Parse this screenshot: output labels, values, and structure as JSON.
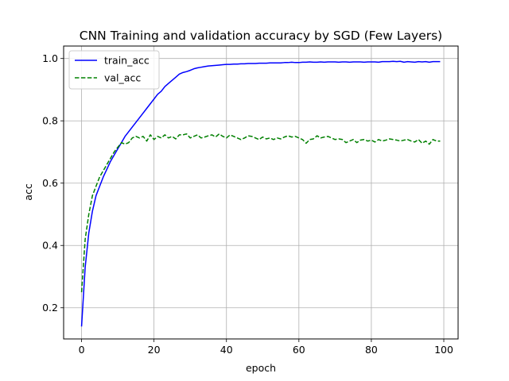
{
  "chart_data": {
    "type": "line",
    "title": "CNN Training and validation accuracy by SGD (Few Layers)",
    "xlabel": "epoch",
    "ylabel": "acc",
    "xlim": [
      -4.95,
      103.95
    ],
    "ylim": [
      0.1,
      1.04
    ],
    "xticks": [
      0,
      20,
      40,
      60,
      80,
      100
    ],
    "yticks": [
      0.2,
      0.4,
      0.6,
      0.8,
      1.0
    ],
    "grid": true,
    "legend_position": "upper-left",
    "series": [
      {
        "name": "train_acc",
        "color": "#0000ff",
        "dash": "solid",
        "x": [
          0,
          1,
          2,
          3,
          4,
          5,
          6,
          7,
          8,
          9,
          10,
          11,
          12,
          13,
          14,
          15,
          16,
          17,
          18,
          19,
          20,
          21,
          22,
          23,
          24,
          25,
          26,
          27,
          28,
          29,
          30,
          31,
          32,
          33,
          34,
          35,
          36,
          37,
          38,
          39,
          40,
          41,
          42,
          43,
          44,
          45,
          46,
          47,
          48,
          49,
          50,
          51,
          52,
          53,
          54,
          55,
          56,
          57,
          58,
          59,
          60,
          61,
          62,
          63,
          64,
          65,
          66,
          67,
          68,
          69,
          70,
          71,
          72,
          73,
          74,
          75,
          76,
          77,
          78,
          79,
          80,
          81,
          82,
          83,
          84,
          85,
          86,
          87,
          88,
          89,
          90,
          91,
          92,
          93,
          94,
          95,
          96,
          97,
          98,
          99
        ],
        "values": [
          0.14,
          0.33,
          0.44,
          0.51,
          0.56,
          0.59,
          0.62,
          0.645,
          0.67,
          0.69,
          0.71,
          0.73,
          0.75,
          0.765,
          0.78,
          0.795,
          0.81,
          0.825,
          0.84,
          0.855,
          0.87,
          0.885,
          0.895,
          0.91,
          0.92,
          0.93,
          0.94,
          0.95,
          0.955,
          0.958,
          0.962,
          0.967,
          0.97,
          0.972,
          0.974,
          0.976,
          0.977,
          0.978,
          0.979,
          0.98,
          0.981,
          0.981,
          0.982,
          0.982,
          0.983,
          0.983,
          0.984,
          0.984,
          0.984,
          0.985,
          0.985,
          0.985,
          0.986,
          0.986,
          0.986,
          0.986,
          0.987,
          0.987,
          0.988,
          0.987,
          0.987,
          0.988,
          0.988,
          0.989,
          0.988,
          0.988,
          0.989,
          0.988,
          0.989,
          0.989,
          0.989,
          0.988,
          0.989,
          0.989,
          0.988,
          0.989,
          0.989,
          0.989,
          0.988,
          0.989,
          0.989,
          0.989,
          0.988,
          0.99,
          0.99,
          0.99,
          0.991,
          0.99,
          0.991,
          0.988,
          0.99,
          0.989,
          0.988,
          0.99,
          0.989,
          0.99,
          0.988,
          0.99,
          0.99,
          0.99
        ]
      },
      {
        "name": "val_acc",
        "color": "#008000",
        "dash": "dashed",
        "x": [
          0,
          1,
          2,
          3,
          4,
          5,
          6,
          7,
          8,
          9,
          10,
          11,
          12,
          13,
          14,
          15,
          16,
          17,
          18,
          19,
          20,
          21,
          22,
          23,
          24,
          25,
          26,
          27,
          28,
          29,
          30,
          31,
          32,
          33,
          34,
          35,
          36,
          37,
          38,
          39,
          40,
          41,
          42,
          43,
          44,
          45,
          46,
          47,
          48,
          49,
          50,
          51,
          52,
          53,
          54,
          55,
          56,
          57,
          58,
          59,
          60,
          61,
          62,
          63,
          64,
          65,
          66,
          67,
          68,
          69,
          70,
          71,
          72,
          73,
          74,
          75,
          76,
          77,
          78,
          79,
          80,
          81,
          82,
          83,
          84,
          85,
          86,
          87,
          88,
          89,
          90,
          91,
          92,
          93,
          94,
          95,
          96,
          97,
          98,
          99
        ],
        "values": [
          0.25,
          0.42,
          0.5,
          0.56,
          0.59,
          0.62,
          0.64,
          0.66,
          0.68,
          0.7,
          0.715,
          0.73,
          0.725,
          0.73,
          0.745,
          0.75,
          0.745,
          0.75,
          0.735,
          0.755,
          0.74,
          0.75,
          0.745,
          0.755,
          0.745,
          0.75,
          0.742,
          0.755,
          0.755,
          0.758,
          0.745,
          0.75,
          0.755,
          0.745,
          0.748,
          0.752,
          0.755,
          0.748,
          0.758,
          0.75,
          0.745,
          0.755,
          0.75,
          0.745,
          0.74,
          0.745,
          0.752,
          0.75,
          0.745,
          0.74,
          0.748,
          0.742,
          0.745,
          0.74,
          0.745,
          0.742,
          0.748,
          0.752,
          0.748,
          0.75,
          0.745,
          0.74,
          0.728,
          0.74,
          0.742,
          0.752,
          0.745,
          0.748,
          0.75,
          0.745,
          0.74,
          0.742,
          0.74,
          0.73,
          0.735,
          0.74,
          0.73,
          0.738,
          0.74,
          0.735,
          0.738,
          0.732,
          0.74,
          0.735,
          0.738,
          0.742,
          0.74,
          0.738,
          0.735,
          0.738,
          0.74,
          0.735,
          0.732,
          0.74,
          0.728,
          0.735,
          0.725,
          0.74,
          0.735,
          0.735
        ]
      }
    ]
  }
}
